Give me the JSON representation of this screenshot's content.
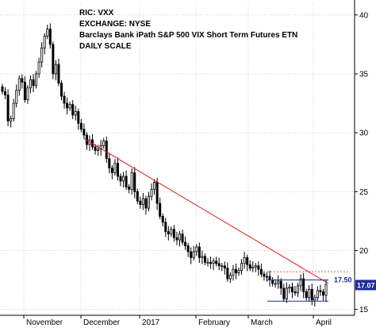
{
  "info": {
    "ric": "RIC: VXX",
    "exchange": "EXCHANGE: NYSE",
    "name": "Barclays Bank iPath S&P 500 VIX Short Term Futures ETN",
    "scale": "DAILY SCALE"
  },
  "colors": {
    "trendline": "#e0201a",
    "level": "#1d2b9c",
    "price_box": "#1d2b9c",
    "grid": "#c8c8c8"
  },
  "chart_data": {
    "type": "candlestick",
    "x_labels": [
      "November",
      "December",
      "2017",
      "February",
      "March",
      "April"
    ],
    "y_ticks": [
      "15",
      "20",
      "25",
      "30",
      "35",
      "40"
    ],
    "ylim": [
      14.5,
      41
    ],
    "grid": true,
    "trendline": {
      "from": [
        29.5,
        "2016-11-25"
      ],
      "to": [
        17.2,
        "2017-04-05"
      ]
    },
    "horizontal_levels": [
      {
        "value": 17.5,
        "label": "17.50"
      },
      {
        "value": 15.7,
        "label": ""
      }
    ],
    "last_price": "17.07",
    "closes": [
      33.5,
      33.2,
      31.0,
      31.2,
      32.5,
      33.6,
      34.6,
      34.3,
      32.8,
      33.8,
      34.5,
      34.0,
      35.0,
      36.0,
      37.2,
      38.2,
      38.8,
      37.5,
      35.0,
      35.8,
      34.2,
      33.1,
      32.5,
      32.1,
      32.4,
      31.5,
      31.8,
      30.8,
      30.3,
      29.8,
      29.0,
      29.4,
      28.8,
      28.5,
      28.6,
      28.9,
      29.3,
      27.8,
      27.0,
      26.6,
      27.4,
      26.3,
      25.9,
      26.3,
      25.4,
      25.2,
      26.6,
      25.0,
      24.2,
      23.9,
      24.4,
      23.6,
      24.6,
      25.2,
      25.8,
      24.0,
      22.9,
      22.4,
      21.6,
      21.4,
      21.8,
      21.1,
      20.9,
      21.4,
      20.7,
      20.4,
      19.9,
      19.4,
      19.9,
      20.3,
      19.4,
      19.5,
      19.0,
      19.0,
      18.9,
      19.1,
      18.9,
      18.7,
      18.7,
      18.5,
      17.6,
      17.9,
      18.4,
      18.1,
      18.3,
      18.9,
      19.4,
      18.8,
      18.5,
      18.6,
      18.7,
      18.4,
      18.0,
      17.8,
      17.8,
      17.5,
      17.2,
      17.2,
      17.4,
      16.8,
      15.9,
      16.8,
      16.9,
      16.5,
      16.4,
      17.0,
      17.6,
      16.5,
      16.0,
      16.7,
      15.8,
      16.0,
      16.6,
      16.5,
      16.2,
      17.1
    ]
  }
}
